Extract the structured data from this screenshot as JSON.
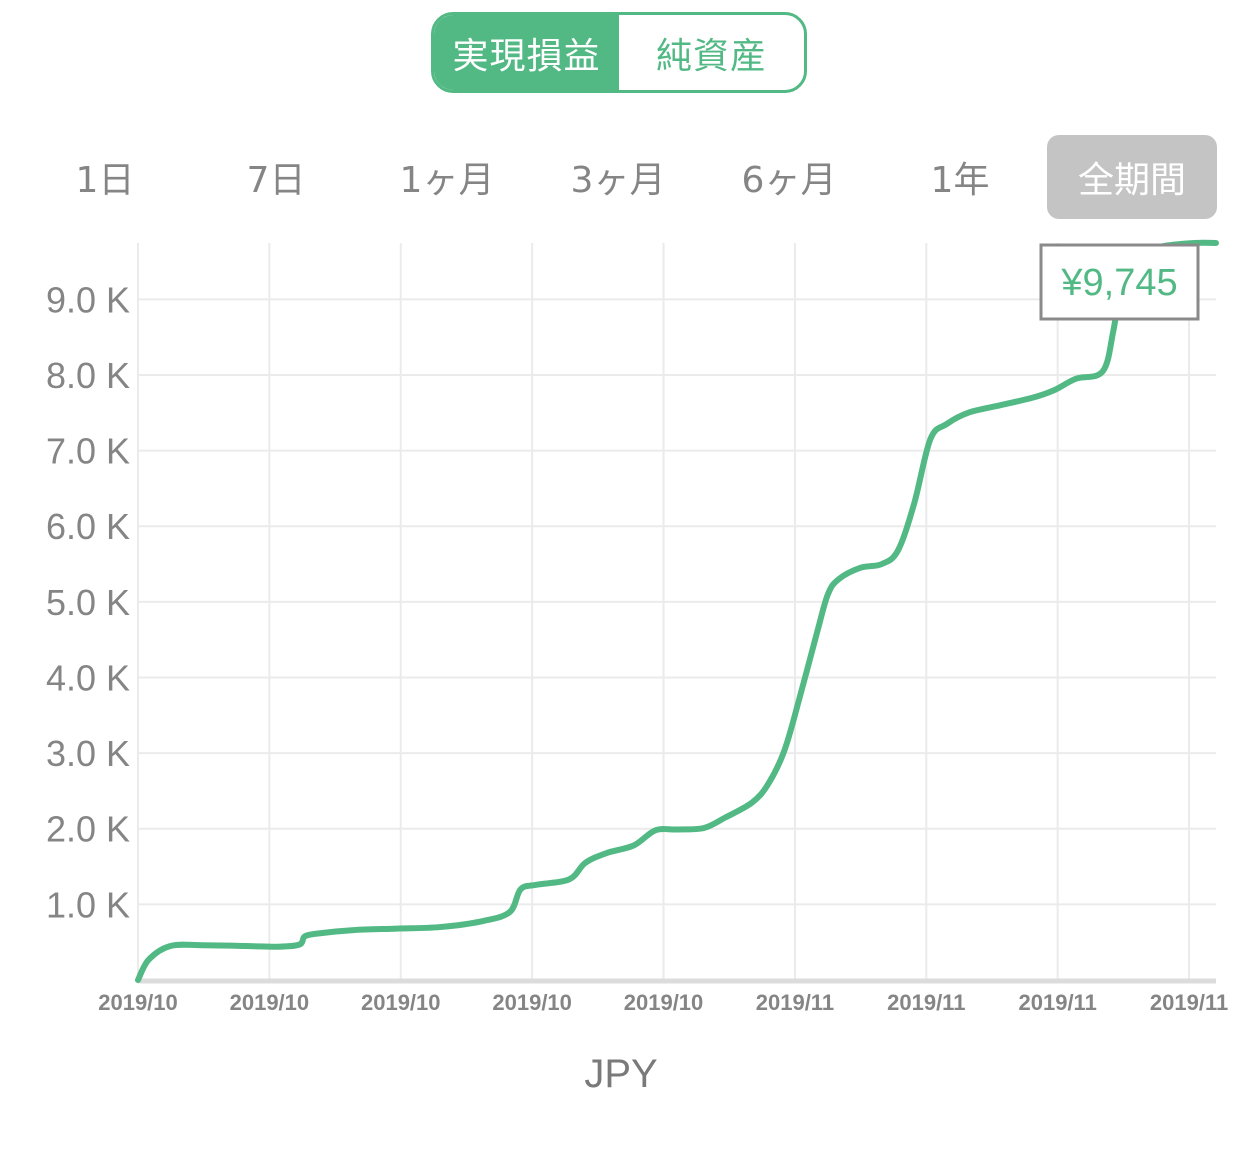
{
  "toggle": {
    "options": [
      "実現損益",
      "純資産"
    ],
    "selected": 0
  },
  "ranges": {
    "items": [
      "1日",
      "7日",
      "1ヶ月",
      "3ヶ月",
      "6ヶ月",
      "1年",
      "全期間"
    ],
    "selected": 6
  },
  "colors": {
    "accent": "#52b985",
    "grid": "#ebebeb",
    "axis_text": "#858585",
    "selected_range_bg": "#c4c4c4"
  },
  "chart_data": {
    "type": "line",
    "unit": "JPY",
    "y_ticks": [
      "1.0 K",
      "2.0 K",
      "3.0 K",
      "4.0 K",
      "5.0 K",
      "6.0 K",
      "7.0 K",
      "8.0 K",
      "9.0 K"
    ],
    "y_tick_values": [
      1000,
      2000,
      3000,
      4000,
      5000,
      6000,
      7000,
      8000,
      9000
    ],
    "x_ticks": [
      "2019/10",
      "2019/10",
      "2019/10",
      "2019/10",
      "2019/10",
      "2019/11",
      "2019/11",
      "2019/11",
      "2019/11"
    ],
    "ylim": [
      0,
      9745
    ],
    "grid": true,
    "tooltip": {
      "text": "¥9,745",
      "value": 9745
    },
    "series": [
      {
        "points": [
          [
            0,
            0
          ],
          [
            0.1,
            270
          ],
          [
            0.3,
            450
          ],
          [
            0.6,
            460
          ],
          [
            1.0,
            450
          ],
          [
            1.3,
            440
          ],
          [
            1.5,
            470
          ],
          [
            1.55,
            580
          ],
          [
            1.7,
            620
          ],
          [
            2.0,
            660
          ],
          [
            2.4,
            680
          ],
          [
            2.8,
            700
          ],
          [
            3.2,
            780
          ],
          [
            3.45,
            900
          ],
          [
            3.55,
            1200
          ],
          [
            3.7,
            1260
          ],
          [
            4.0,
            1330
          ],
          [
            4.15,
            1550
          ],
          [
            4.35,
            1680
          ],
          [
            4.6,
            1780
          ],
          [
            4.8,
            1980
          ],
          [
            5.0,
            1990
          ],
          [
            5.25,
            2010
          ],
          [
            5.45,
            2150
          ],
          [
            5.7,
            2350
          ],
          [
            5.85,
            2600
          ],
          [
            6.0,
            3050
          ],
          [
            6.15,
            3800
          ],
          [
            6.3,
            4600
          ],
          [
            6.4,
            5100
          ],
          [
            6.5,
            5300
          ],
          [
            6.7,
            5450
          ],
          [
            6.9,
            5500
          ],
          [
            7.05,
            5680
          ],
          [
            7.2,
            6300
          ],
          [
            7.35,
            7150
          ],
          [
            7.5,
            7350
          ],
          [
            7.7,
            7500
          ],
          [
            8.0,
            7600
          ],
          [
            8.3,
            7700
          ],
          [
            8.5,
            7800
          ],
          [
            8.7,
            7950
          ],
          [
            8.95,
            8050
          ],
          [
            9.05,
            8600
          ],
          [
            9.15,
            9400
          ],
          [
            9.35,
            9600
          ],
          [
            9.5,
            9700
          ],
          [
            9.8,
            9745
          ],
          [
            10.0,
            9745
          ]
        ]
      }
    ]
  }
}
